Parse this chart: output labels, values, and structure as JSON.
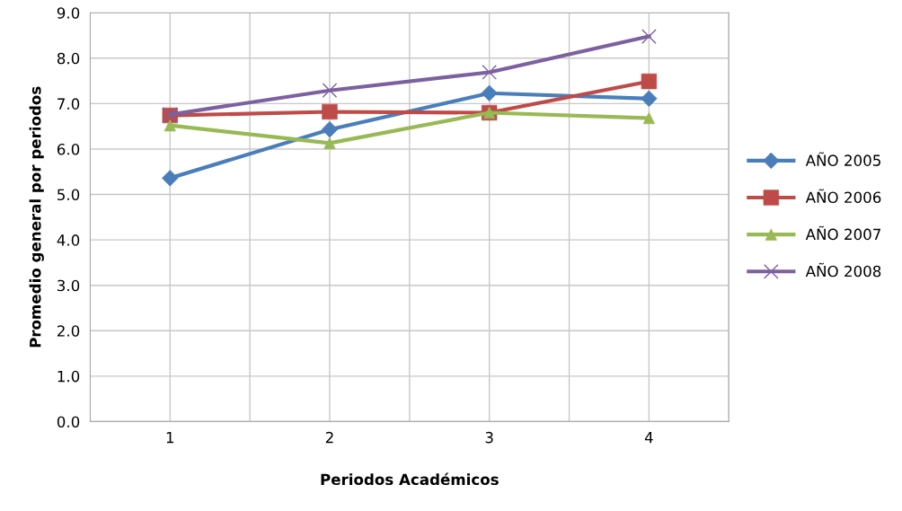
{
  "chart_data": {
    "type": "line",
    "xlabel": "Periodos Académicos",
    "ylabel": "Promedio general por periodos",
    "x": [
      1,
      2,
      3,
      4
    ],
    "xlim": [
      0.5,
      4.5
    ],
    "xticks": [
      {
        "value": 0.5,
        "label": null
      },
      1,
      {
        "value": 1.5,
        "label": null
      },
      2,
      {
        "value": 2.5,
        "label": null
      },
      3,
      {
        "value": 3.5,
        "label": null
      },
      4,
      {
        "value": 4.5,
        "label": null
      }
    ],
    "ylim": [
      0,
      9
    ],
    "yticks": [
      {
        "value": 0,
        "label": "0.0"
      },
      {
        "value": 1,
        "label": "1.0"
      },
      {
        "value": 2,
        "label": "2.0"
      },
      {
        "value": 3,
        "label": "3.0"
      },
      {
        "value": 4,
        "label": "4.0"
      },
      {
        "value": 5,
        "label": "5.0"
      },
      {
        "value": 6,
        "label": "6.0"
      },
      {
        "value": 7,
        "label": "7.0"
      },
      {
        "value": 8,
        "label": "8.0"
      },
      {
        "value": 9,
        "label": "9.0"
      }
    ],
    "grid": true,
    "legend": "right",
    "series": [
      {
        "name": "AÑO 2005",
        "color": "#4a7ebb",
        "marker": "diamond",
        "values": [
          5.36,
          6.43,
          7.23,
          7.11
        ]
      },
      {
        "name": "AÑO 2006",
        "color": "#be4b48",
        "marker": "square",
        "values": [
          6.74,
          6.82,
          6.8,
          7.49
        ]
      },
      {
        "name": "AÑO 2007",
        "color": "#98b954",
        "marker": "triangle",
        "values": [
          6.52,
          6.13,
          6.8,
          6.68
        ]
      },
      {
        "name": "AÑO 2008",
        "color": "#7d60a0",
        "marker": "cross",
        "values": [
          6.76,
          7.29,
          7.69,
          8.48
        ]
      }
    ]
  }
}
